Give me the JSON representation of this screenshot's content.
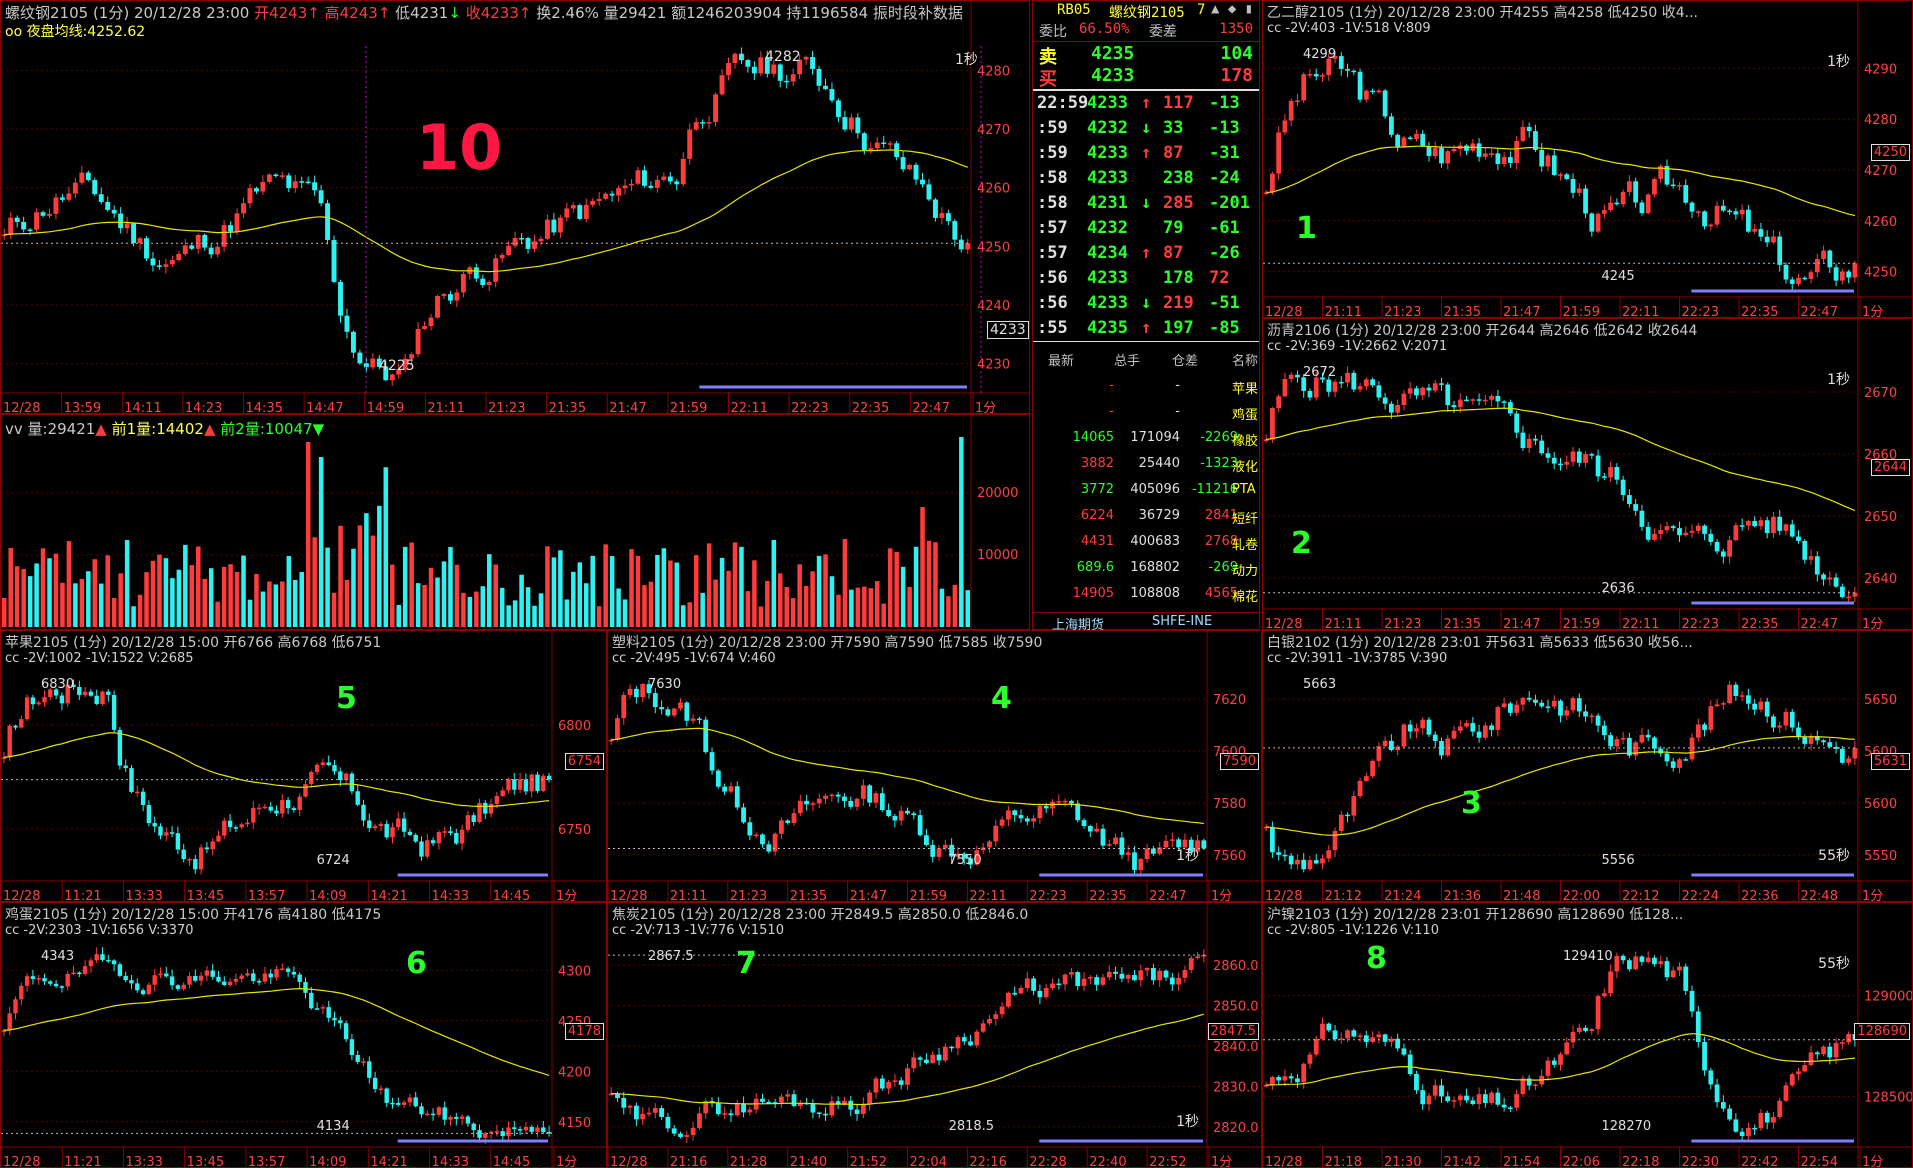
{
  "main": {
    "header": [
      {
        "t": "螺纹钢2105 (1分) 20/12/28 23:00 ",
        "c": ""
      },
      {
        "t": "开4243",
        "c": "red"
      },
      {
        "t": "↑ ",
        "c": "red"
      },
      {
        "t": "高4243",
        "c": "red"
      },
      {
        "t": "↑ ",
        "c": "red"
      },
      {
        "t": "低4231",
        "c": ""
      },
      {
        "t": "↓ ",
        "c": "grn"
      },
      {
        "t": "收4233",
        "c": "red"
      },
      {
        "t": "↑ ",
        "c": "red"
      },
      {
        "t": "换2.46% 量29421 额1246203904 持1196584 振",
        "c": ""
      },
      {
        "t": "时段",
        "c": ""
      },
      {
        "t": "补数据",
        "c": ""
      }
    ],
    "avg_line_label": "oo 夜盘均线:4252.62",
    "big_number": "10",
    "high_label": "4282",
    "low_label": "4225",
    "period_label": "1秒",
    "last_price_tag": "4233",
    "y_ticks": [
      "4280",
      "4270",
      "4260",
      "4250",
      "4240",
      "4230"
    ],
    "x_ticks": [
      "12/28",
      "13:59",
      "14:11",
      "14:23",
      "14:35",
      "14:47",
      "14:59",
      "21:11",
      "21:23",
      "21:35",
      "21:47",
      "21:59",
      "22:11",
      "22:23",
      "22:35",
      "22:47",
      "1分"
    ],
    "volume_header": "vv 量:29421",
    "volume_prev1": "前1量:14402",
    "volume_prev2": "前2量:10047",
    "volume_ticks": [
      "20000",
      "10000"
    ]
  },
  "ticker": {
    "code": "RB05",
    "name": "螺纹钢2105",
    "num": "7",
    "weibi_label": "委比",
    "weibi": "66.50%",
    "weicha_label": "委差",
    "weicha": "1350",
    "sell_label": "卖",
    "sell_price": "4235",
    "sell_vol": "104",
    "buy_label": "买",
    "buy_price": "4233",
    "buy_vol": "178",
    "trades": [
      {
        "time": "22:59",
        "price": "4233",
        "dir": "↑",
        "vol": "117",
        "chg": "-13"
      },
      {
        "time": ":59",
        "price": "4232",
        "dir": "↓",
        "vol": "33",
        "chg": "-13"
      },
      {
        "time": ":59",
        "price": "4233",
        "dir": "↑",
        "vol": "87",
        "chg": "-31"
      },
      {
        "time": ":58",
        "price": "4233",
        "dir": "",
        "vol": "238",
        "chg": "-24"
      },
      {
        "time": ":58",
        "price": "4231",
        "dir": "↓",
        "vol": "285",
        "chg": "-201"
      },
      {
        "time": ":57",
        "price": "4232",
        "dir": "",
        "vol": "79",
        "chg": "-61"
      },
      {
        "time": ":57",
        "price": "4234",
        "dir": "↑",
        "vol": "87",
        "chg": "-26"
      },
      {
        "time": ":56",
        "price": "4233",
        "dir": "",
        "vol": "178",
        "chg": "72"
      },
      {
        "time": ":56",
        "price": "4233",
        "dir": "↓",
        "vol": "219",
        "chg": "-51"
      },
      {
        "time": ":55",
        "price": "4235",
        "dir": "↑",
        "vol": "197",
        "chg": "-85"
      }
    ]
  },
  "market_table": {
    "headers": [
      "最新",
      "总手",
      "仓差",
      "名称"
    ],
    "rows": [
      {
        "last": "-",
        "total": "-",
        "diff": "-",
        "name": "苹果"
      },
      {
        "last": "-",
        "total": "-",
        "diff": "-",
        "name": "鸡蛋"
      },
      {
        "last": "14065",
        "total": "171094",
        "diff": "-2269",
        "name": "橡胶"
      },
      {
        "last": "3882",
        "total": "25440",
        "diff": "-1323",
        "name": "液化"
      },
      {
        "last": "3772",
        "total": "405096",
        "diff": "-11216",
        "name": "PTA"
      },
      {
        "last": "6224",
        "total": "36729",
        "diff": "2841",
        "name": "短纤"
      },
      {
        "last": "4431",
        "total": "400683",
        "diff": "2768",
        "name": "轧卷"
      },
      {
        "last": "689.6",
        "total": "168802",
        "diff": "-269",
        "name": "动力"
      },
      {
        "last": "14905",
        "total": "108808",
        "diff": "4565",
        "name": "棉花"
      }
    ],
    "exchanges": [
      "上海期货",
      "SHFE-INE"
    ]
  },
  "panels": [
    {
      "id": "p1",
      "title": "乙二醇2105 (1分) 20/12/28 23:00 开4255 高4258 低4250 收4...",
      "sub": "cc -2V:403 -1V:518 V:809",
      "num": "1",
      "hi": "4299",
      "lo": "4245",
      "tag": "4250",
      "period": "1秒",
      "yticks": [
        "4290",
        "4280",
        "4270",
        "4260",
        "4250"
      ],
      "xticks": [
        "12/28",
        "21:11",
        "21:23",
        "21:35",
        "21:47",
        "21:59",
        "22:11",
        "22:23",
        "22:35",
        "22:47",
        "1分"
      ]
    },
    {
      "id": "p2",
      "title": "沥青2106 (1分) 20/12/28 23:00 开2644 高2646 低2642 收2644",
      "sub": "cc -2V:369 -1V:2662 V:2071",
      "num": "2",
      "hi": "2672",
      "lo": "2636",
      "tag": "2644",
      "period": "1秒",
      "yticks": [
        "2670",
        "2660",
        "2650",
        "2640"
      ],
      "xticks": [
        "12/28",
        "21:11",
        "21:23",
        "21:35",
        "21:47",
        "21:59",
        "22:11",
        "22:23",
        "22:35",
        "22:47",
        "1分"
      ]
    },
    {
      "id": "p3",
      "title": "白银2102 (1分) 20/12/28 23:01 开5631 高5633 低5630 收56...",
      "sub": "cc -2V:3911 -1V:3785 V:390",
      "num": "3",
      "hi": "5663",
      "lo": "5556",
      "tag": "5631",
      "period": "55秒",
      "yticks": [
        "5650",
        "5600",
        "5600",
        "5550"
      ],
      "xticks": [
        "12/28",
        "21:12",
        "21:24",
        "21:36",
        "21:48",
        "22:00",
        "22:12",
        "22:24",
        "22:36",
        "22:48",
        "1分"
      ]
    },
    {
      "id": "p4",
      "title": "塑料2105 (1分) 20/12/28 23:00 开7590 高7590 低7585 收7590",
      "sub": "cc -2V:495 -1V:674 V:460",
      "num": "4",
      "hi": "7630",
      "lo": "7550",
      "tag": "7590",
      "period": "1秒",
      "yticks": [
        "7620",
        "7600",
        "7580",
        "7560"
      ],
      "xticks": [
        "12/28",
        "21:11",
        "21:23",
        "21:35",
        "21:47",
        "21:59",
        "22:11",
        "22:23",
        "22:35",
        "22:47",
        "1分"
      ]
    },
    {
      "id": "p5",
      "title": "苹果2105 (1分) 20/12/28 15:00 开6766 高6768 低6751",
      "sub": "cc -2V:1002 -1V:1522 V:2685",
      "num": "5",
      "hi": "6830",
      "lo": "6724",
      "tag": "6754",
      "period": "",
      "yticks": [
        "6800",
        "6750"
      ],
      "xticks": [
        "12/28",
        "11:21",
        "13:33",
        "13:45",
        "13:57",
        "14:09",
        "14:21",
        "14:33",
        "14:45",
        "1分"
      ]
    },
    {
      "id": "p6",
      "title": "鸡蛋2105 (1分) 20/12/28 15:00 开4176 高4180 低4175",
      "sub": "cc -2V:2303 -1V:1656 V:3370",
      "num": "6",
      "hi": "4343",
      "lo": "4134",
      "tag": "4178",
      "period": "",
      "yticks": [
        "4300",
        "4250",
        "4200",
        "4150"
      ],
      "xticks": [
        "12/28",
        "11:21",
        "13:33",
        "13:45",
        "13:57",
        "14:09",
        "14:21",
        "14:33",
        "14:45",
        "1分"
      ]
    },
    {
      "id": "p7",
      "title": "焦炭2105 (1分) 20/12/28 23:00 开2849.5 高2850.0 低2846.0",
      "sub": "cc -2V:713 -1V:776 V:1510",
      "num": "7",
      "hi": "2867.5",
      "lo": "2818.5",
      "tag": "2847.5",
      "period": "1秒",
      "yticks": [
        "2860.0",
        "2850.0",
        "2840.0",
        "2830.0",
        "2820.0"
      ],
      "xticks": [
        "12/28",
        "21:16",
        "21:28",
        "21:40",
        "21:52",
        "22:04",
        "22:16",
        "22:28",
        "22:40",
        "22:52",
        "1分"
      ]
    },
    {
      "id": "p8",
      "title": "沪镍2103 (1分) 20/12/28 23:01 开128690 高128690 低128...",
      "sub": "cc -2V:805 -1V:1226 V:110",
      "num": "8",
      "hi": "129410",
      "lo": "128270",
      "tag": "128690",
      "period": "55秒",
      "yticks": [
        "129000",
        "128500"
      ],
      "xticks": [
        "12/28",
        "21:18",
        "21:30",
        "21:42",
        "21:54",
        "22:06",
        "22:18",
        "22:30",
        "22:42",
        "22:54",
        "1分"
      ]
    }
  ],
  "colors": {
    "up": "#ff3b3b",
    "down": "#2df2f2",
    "avg": "#e6e600",
    "grid": "#8a0000",
    "bg": "#000000"
  }
}
